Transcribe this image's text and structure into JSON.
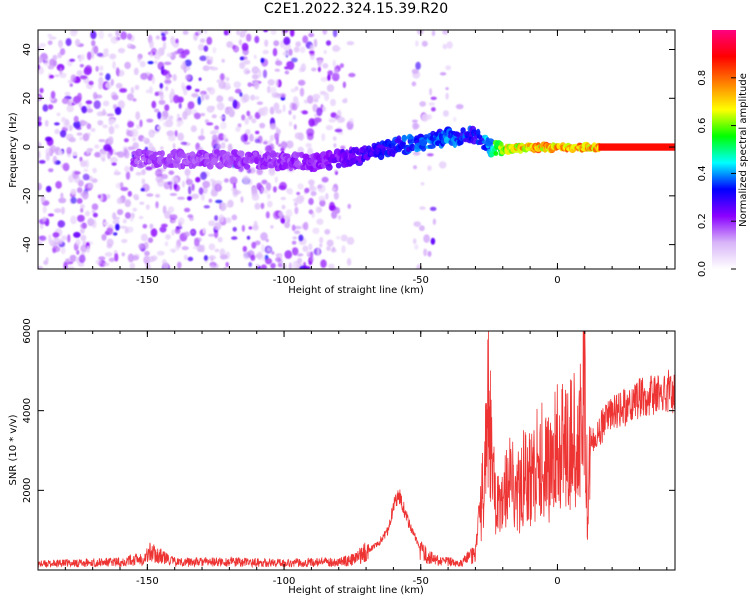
{
  "title": "C2E1.2022.324.15.39.R20",
  "chart_data": [
    {
      "type": "heatmap",
      "xlabel": "Height of straight line (km)",
      "ylabel": "Frequency (Hz)",
      "xlim": [
        -190,
        43
      ],
      "ylim": [
        -50,
        48
      ],
      "xticks": [
        "-150",
        "-100",
        "-50",
        "0"
      ],
      "yticks": [
        "-40",
        "-20",
        "0",
        "20",
        "40"
      ],
      "colorbar": {
        "label": "Normalized spectral amplitude",
        "range": [
          0,
          1
        ],
        "ticks": [
          "0.0",
          "0.2",
          "0.4",
          "0.6",
          "0.8"
        ],
        "colors": [
          "#ffffff",
          "#d8b4f8",
          "#8a00ff",
          "#0000ff",
          "#00ffff",
          "#00ff00",
          "#ffff00",
          "#ff8000",
          "#ff0000",
          "#ff0080"
        ]
      },
      "signal_track": {
        "x": [
          -155,
          -140,
          -120,
          -100,
          -90,
          -80,
          -70,
          -60,
          -50,
          -40,
          -30,
          -25,
          -20,
          -10,
          0,
          10,
          20,
          43
        ],
        "y": [
          -5,
          -5,
          -5,
          -6,
          -6,
          -5,
          -3,
          0,
          2,
          4,
          5,
          0,
          -1,
          0,
          0,
          0,
          0,
          0
        ],
        "amplitude": [
          0.2,
          0.2,
          0.2,
          0.22,
          0.22,
          0.25,
          0.3,
          0.35,
          0.4,
          0.4,
          0.35,
          0.45,
          0.7,
          0.8,
          0.8,
          0.8,
          0.9,
          0.9
        ]
      },
      "noise_background": "scattered low-amplitude purple speckle dominant for x < -75 km, sparse band near -50 km"
    },
    {
      "type": "line",
      "xlabel": "Height of straight line (km)",
      "ylabel": "SNR (10 * v/v)",
      "xlim": [
        -190,
        43
      ],
      "ylim": [
        0,
        6000
      ],
      "xticks": [
        "-150",
        "-100",
        "-50",
        "0"
      ],
      "yticks": [
        "2000",
        "4000",
        "6000"
      ],
      "color": "#ee3333",
      "series": [
        {
          "x": [
            -190,
            -160,
            -151,
            -149,
            -140,
            -120,
            -100,
            -80,
            -75,
            -70,
            -65,
            -62,
            -60,
            -58,
            -55,
            -52,
            -50,
            -45,
            -40,
            -35,
            -30,
            -28,
            -26,
            -25,
            -24,
            -22,
            -20,
            -18,
            -15,
            -12,
            -10,
            -8,
            -5,
            -2,
            0,
            2,
            5,
            8,
            10,
            11,
            12,
            15,
            20,
            25,
            30,
            35,
            40,
            43
          ],
          "y": [
            150,
            200,
            300,
            450,
            200,
            200,
            180,
            200,
            250,
            450,
            700,
            1000,
            1600,
            1900,
            1300,
            800,
            450,
            250,
            200,
            200,
            400,
            1500,
            3000,
            4600,
            2400,
            1500,
            2000,
            2500,
            1800,
            2400,
            2300,
            2600,
            2800,
            2500,
            3200,
            3000,
            3400,
            3000,
            5500,
            1200,
            3200,
            3500,
            3900,
            4100,
            4300,
            4400,
            4500,
            4450
          ]
        }
      ]
    }
  ]
}
